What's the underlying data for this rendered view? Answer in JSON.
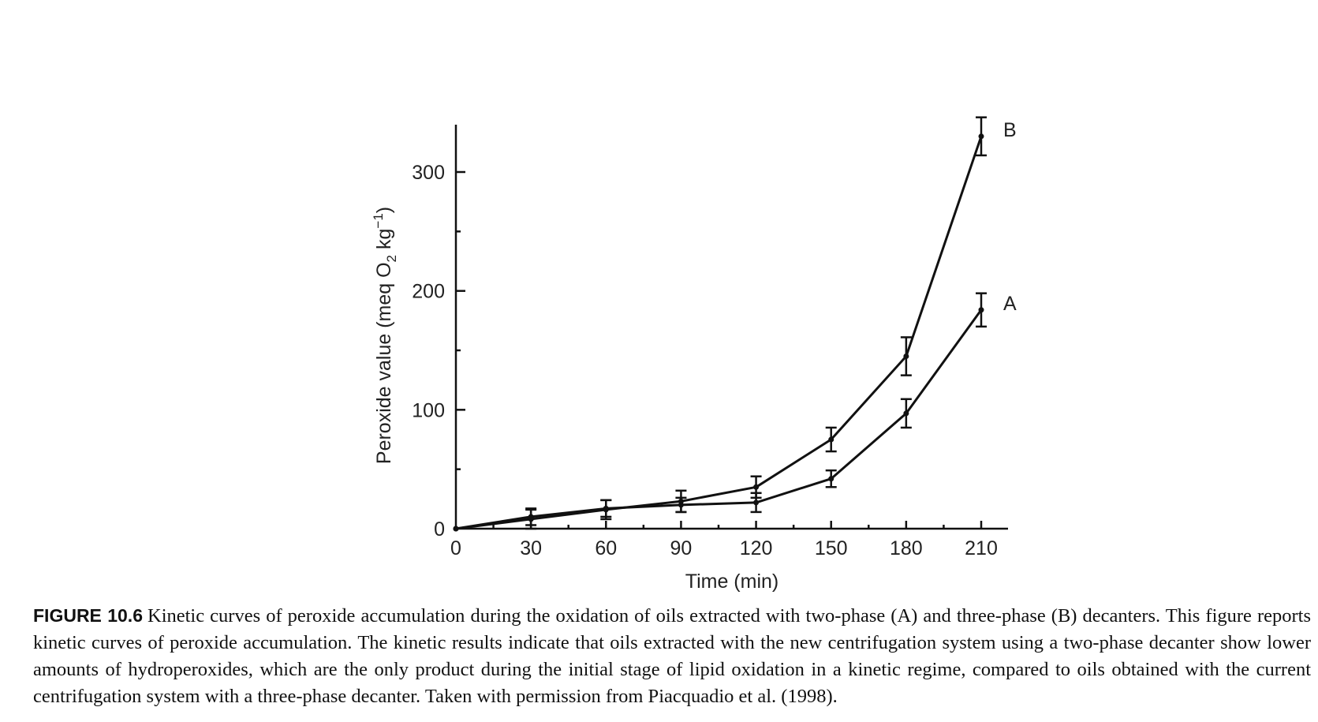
{
  "chart_data": {
    "type": "line",
    "title": "",
    "xlabel": "Time (min)",
    "ylabel_main": "Peroxide value (meq O",
    "ylabel_sub": "2",
    "ylabel_unit": " kg",
    "ylabel_sup": "−1",
    "ylabel_close": ")",
    "x": [
      0,
      30,
      60,
      90,
      120,
      150,
      180,
      210
    ],
    "x_ticks": [
      "0",
      "30",
      "60",
      "90",
      "120",
      "150",
      "180",
      "210"
    ],
    "y_ticks": [
      "0",
      "100",
      "200",
      "300"
    ],
    "xlim": [
      0,
      220
    ],
    "ylim": [
      0,
      340
    ],
    "series": [
      {
        "name": "A",
        "values": [
          0,
          10,
          17,
          20,
          22,
          42,
          97,
          184
        ],
        "errors": [
          0,
          7,
          7,
          6,
          8,
          7,
          12,
          14
        ]
      },
      {
        "name": "B",
        "values": [
          0,
          8,
          16,
          23,
          35,
          75,
          145,
          330
        ],
        "errors": [
          0,
          8,
          8,
          9,
          9,
          10,
          16,
          16
        ]
      }
    ]
  },
  "caption": {
    "label": "FIGURE 10.6",
    "text": "Kinetic curves of peroxide accumulation during the oxidation of oils extracted with two-phase (A) and three-phase (B) decanters. This figure reports kinetic curves of peroxide accumulation. The kinetic results indicate that oils extracted with the new centrifugation system using a two-phase decanter show lower amounts of hydroperoxides, which are the only product during the initial stage of lipid oxidation in a kinetic regime, compared to oils obtained with the current centrifugation system with a three-phase decanter. Taken with permission from Piacquadio et al. (1998)."
  }
}
